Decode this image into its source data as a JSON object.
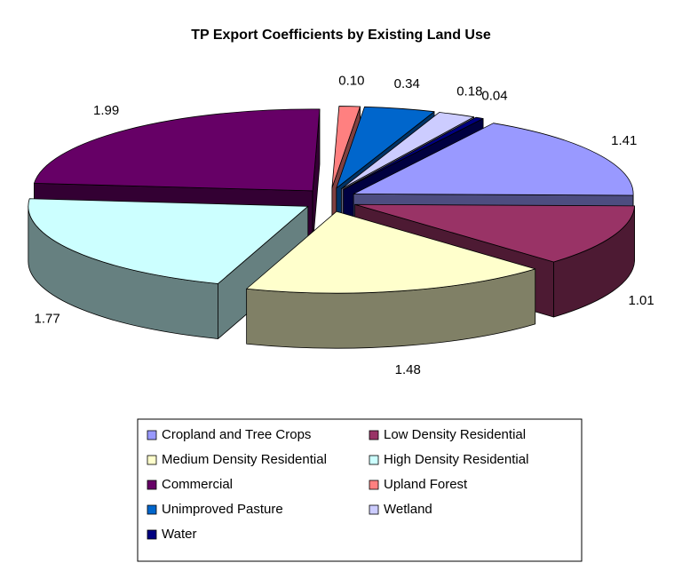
{
  "chart_data": {
    "type": "pie",
    "title": "TP Export Coefficients by Existing Land Use",
    "categories": [
      "Cropland and Tree Crops",
      "Low Density Residential",
      "Medium Density Residential",
      "High Density Residential",
      "Commercial",
      "Upland Forest",
      "Unimproved Pasture",
      "Wetland",
      "Water"
    ],
    "values": [
      1.41,
      1.01,
      1.48,
      1.77,
      1.99,
      0.1,
      0.34,
      0.18,
      0.04
    ],
    "value_labels": [
      "1.41",
      "1.01",
      "1.48",
      "1.77",
      "1.99",
      "0.10",
      "0.34",
      "0.18",
      "0.04"
    ],
    "colors": [
      "#9999ff",
      "#993366",
      "#ffffcc",
      "#ccffff",
      "#660066",
      "#ff8080",
      "#0066cc",
      "#ccccff",
      "#000080"
    ]
  }
}
